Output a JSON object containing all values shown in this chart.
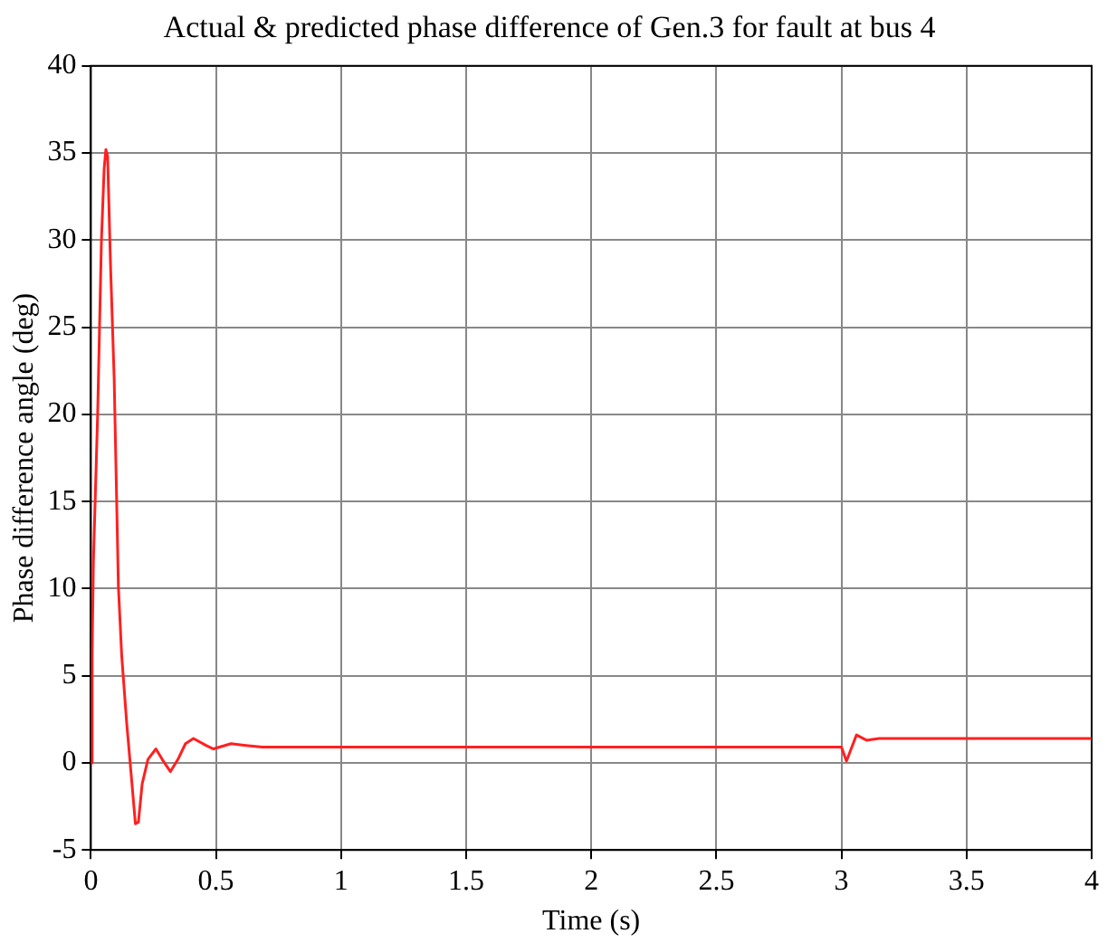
{
  "chart_data": {
    "type": "line",
    "title": "Actual & predicted phase difference of Gen.3 for fault at bus 4",
    "xlabel": "Time (s)",
    "ylabel": "Phase difference angle (deg)",
    "xlim": [
      0,
      4
    ],
    "xticks": [
      0,
      0.5,
      1,
      1.5,
      2,
      2.5,
      3,
      3.5,
      4
    ],
    "ylim": [
      -5,
      40
    ],
    "yticks": [
      -5,
      0,
      5,
      10,
      15,
      20,
      25,
      30,
      35,
      40
    ],
    "grid": true,
    "legend": false,
    "marker": "none",
    "line_style": "solid",
    "x": [
      0,
      0.005,
      0.01,
      0.027,
      0.035,
      0.042,
      0.053,
      0.06,
      0.067,
      0.078,
      0.093,
      0.11,
      0.123,
      0.143,
      0.16,
      0.178,
      0.19,
      0.205,
      0.228,
      0.26,
      0.285,
      0.318,
      0.348,
      0.378,
      0.41,
      0.46,
      0.49,
      0.56,
      0.62,
      0.685,
      3.0,
      3.02,
      3.06,
      3.1,
      3.15,
      4
    ],
    "series": [
      {
        "color": "#ff2020",
        "values": [
          0,
          6.2,
          11.5,
          20,
          25.3,
          29.9,
          34.1,
          35.2,
          34.8,
          28.8,
          22.1,
          10.1,
          6.2,
          2.3,
          -0.5,
          -3.5,
          -3.4,
          -1.2,
          0.2,
          0.8,
          0.2,
          -0.5,
          0.2,
          1.1,
          1.4,
          1.0,
          0.8,
          1.1,
          1.0,
          0.9,
          0.9,
          0.1,
          1.6,
          1.3,
          1.4,
          1.4
        ]
      }
    ]
  }
}
